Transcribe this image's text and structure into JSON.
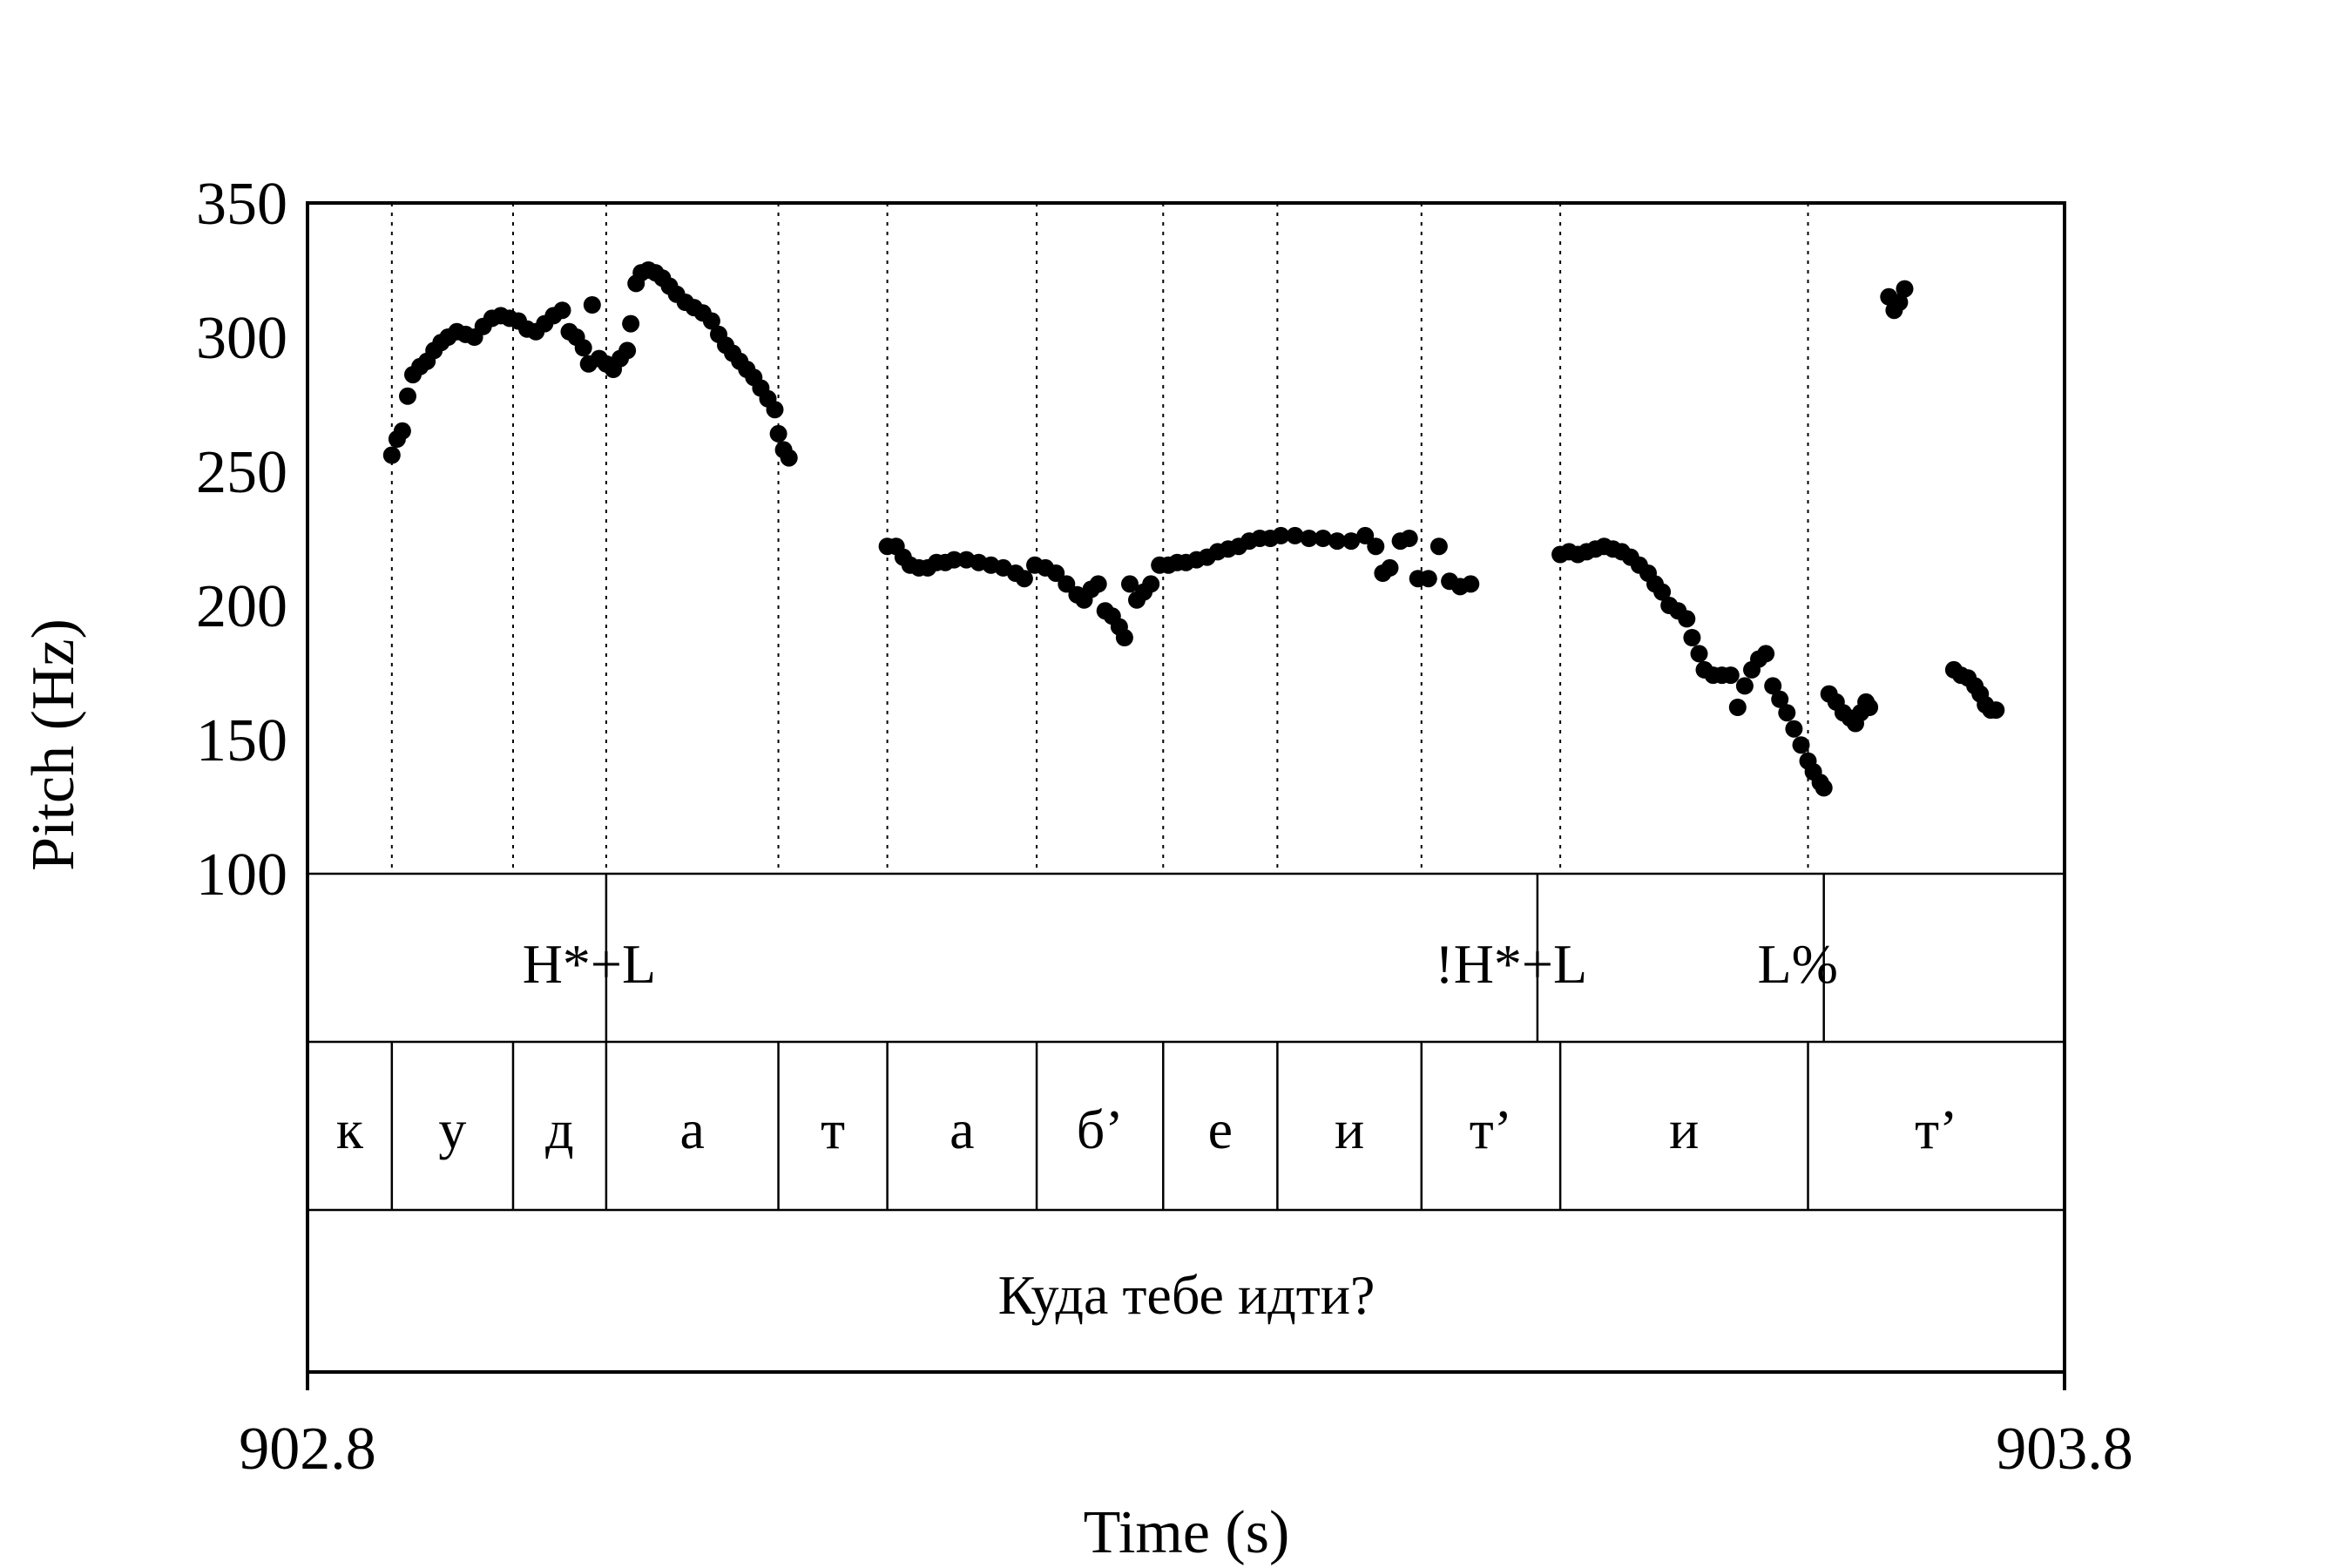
{
  "chart_data": {
    "type": "scatter",
    "xlabel": "Time (s)",
    "ylabel": "Pitch (Hz)",
    "xlim": [
      902.8,
      903.8
    ],
    "ylim": [
      100,
      350
    ],
    "x_tick_labels": [
      "902.8",
      "903.8"
    ],
    "y_ticks": [
      100,
      150,
      200,
      250,
      300,
      350
    ],
    "y_tick_labels": [
      "100",
      "150",
      "200",
      "250",
      "300",
      "350"
    ],
    "grid": false,
    "marker_color": "#000000",
    "tones": [
      {
        "label": "H*+L",
        "time": 902.97
      },
      {
        "label": "!H*+L",
        "time": 903.5
      },
      {
        "label": "L%",
        "time": 903.663
      }
    ],
    "segments": [
      {
        "label": "к",
        "start": 902.8,
        "end": 902.848
      },
      {
        "label": "у",
        "start": 902.848,
        "end": 902.917
      },
      {
        "label": "д",
        "start": 902.917,
        "end": 902.97
      },
      {
        "label": "а",
        "start": 902.97,
        "end": 903.068
      },
      {
        "label": "т",
        "start": 903.068,
        "end": 903.13
      },
      {
        "label": "а",
        "start": 903.13,
        "end": 903.215
      },
      {
        "label": "б’",
        "start": 903.215,
        "end": 903.287
      },
      {
        "label": "е",
        "start": 903.287,
        "end": 903.352
      },
      {
        "label": "и",
        "start": 903.352,
        "end": 903.434
      },
      {
        "label": "т’",
        "start": 903.434,
        "end": 903.513
      },
      {
        "label": "и",
        "start": 903.513,
        "end": 903.654
      },
      {
        "label": "т’",
        "start": 903.654,
        "end": 903.8
      }
    ],
    "sentence": "Куда тебе идти?",
    "series": [
      {
        "points": [
          [
            902.848,
            256
          ],
          [
            902.851,
            262
          ],
          [
            902.854,
            265
          ],
          [
            902.857,
            278
          ],
          [
            902.86,
            286
          ],
          [
            902.864,
            289
          ],
          [
            902.868,
            291
          ],
          [
            902.872,
            295
          ],
          [
            902.876,
            298
          ],
          [
            902.88,
            300
          ],
          [
            902.885,
            302
          ],
          [
            902.89,
            301
          ],
          [
            902.895,
            300
          ],
          [
            902.9,
            304
          ],
          [
            902.905,
            307
          ],
          [
            902.91,
            308
          ],
          [
            902.915,
            307
          ],
          [
            902.92,
            306
          ],
          [
            902.925,
            303
          ],
          [
            902.93,
            302
          ],
          [
            902.935,
            305
          ],
          [
            902.94,
            308
          ],
          [
            902.945,
            310
          ],
          [
            902.949,
            302
          ],
          [
            902.953,
            300
          ],
          [
            902.957,
            296
          ],
          [
            902.96,
            290
          ],
          [
            902.962,
            312
          ],
          [
            902.966,
            292
          ],
          [
            902.97,
            290
          ],
          [
            902.974,
            288
          ],
          [
            902.978,
            292
          ],
          [
            902.982,
            295
          ],
          [
            902.984,
            305
          ],
          [
            902.987,
            320
          ],
          [
            902.99,
            324
          ],
          [
            902.994,
            325
          ],
          [
            902.998,
            324
          ],
          [
            903.002,
            322
          ],
          [
            903.006,
            319
          ],
          [
            903.01,
            316
          ],
          [
            903.015,
            313
          ],
          [
            903.02,
            311
          ],
          [
            903.025,
            309
          ],
          [
            903.03,
            306
          ],
          [
            903.034,
            301
          ],
          [
            903.038,
            297
          ],
          [
            903.042,
            294
          ],
          [
            903.046,
            291
          ],
          [
            903.05,
            288
          ],
          [
            903.054,
            285
          ],
          [
            903.058,
            281
          ],
          [
            903.062,
            277
          ],
          [
            903.066,
            273
          ],
          [
            903.068,
            264
          ],
          [
            903.071,
            258
          ],
          [
            903.074,
            255
          ],
          [
            903.13,
            222
          ],
          [
            903.135,
            222
          ],
          [
            903.139,
            218
          ],
          [
            903.143,
            215
          ],
          [
            903.148,
            214
          ],
          [
            903.153,
            214
          ],
          [
            903.158,
            216
          ],
          [
            903.163,
            216
          ],
          [
            903.168,
            217
          ],
          [
            903.175,
            217
          ],
          [
            903.182,
            216
          ],
          [
            903.189,
            215
          ],
          [
            903.196,
            214
          ],
          [
            903.203,
            212
          ],
          [
            903.208,
            210
          ],
          [
            903.214,
            215
          ],
          [
            903.22,
            214
          ],
          [
            903.226,
            212
          ],
          [
            903.232,
            208
          ],
          [
            903.238,
            204
          ],
          [
            903.242,
            202
          ],
          [
            903.246,
            206
          ],
          [
            903.25,
            208
          ],
          [
            903.254,
            198
          ],
          [
            903.258,
            196
          ],
          [
            903.262,
            192
          ],
          [
            903.265,
            188
          ],
          [
            903.268,
            208
          ],
          [
            903.272,
            202
          ],
          [
            903.276,
            205
          ],
          [
            903.28,
            208
          ],
          [
            903.285,
            215
          ],
          [
            903.29,
            215
          ],
          [
            903.295,
            216
          ],
          [
            903.3,
            216
          ],
          [
            903.306,
            217
          ],
          [
            903.312,
            218
          ],
          [
            903.318,
            220
          ],
          [
            903.324,
            221
          ],
          [
            903.33,
            222
          ],
          [
            903.336,
            224
          ],
          [
            903.342,
            225
          ],
          [
            903.348,
            225
          ],
          [
            903.354,
            226
          ],
          [
            903.362,
            226
          ],
          [
            903.37,
            225
          ],
          [
            903.378,
            225
          ],
          [
            903.386,
            224
          ],
          [
            903.394,
            224
          ],
          [
            903.402,
            226
          ],
          [
            903.408,
            222
          ],
          [
            903.412,
            212
          ],
          [
            903.416,
            214
          ],
          [
            903.422,
            224
          ],
          [
            903.427,
            225
          ],
          [
            903.432,
            210
          ],
          [
            903.438,
            210
          ],
          [
            903.444,
            222
          ],
          [
            903.45,
            209
          ],
          [
            903.456,
            207
          ],
          [
            903.462,
            208
          ],
          [
            903.513,
            219
          ],
          [
            903.518,
            220
          ],
          [
            903.523,
            219
          ],
          [
            903.528,
            220
          ],
          [
            903.533,
            221
          ],
          [
            903.538,
            222
          ],
          [
            903.543,
            221
          ],
          [
            903.548,
            220
          ],
          [
            903.553,
            218
          ],
          [
            903.558,
            215
          ],
          [
            903.563,
            212
          ],
          [
            903.567,
            208
          ],
          [
            903.571,
            205
          ],
          [
            903.575,
            200
          ],
          [
            903.58,
            198
          ],
          [
            903.585,
            195
          ],
          [
            903.588,
            188
          ],
          [
            903.592,
            182
          ],
          [
            903.595,
            176
          ],
          [
            903.6,
            174
          ],
          [
            903.605,
            174
          ],
          [
            903.61,
            174
          ],
          [
            903.614,
            162
          ],
          [
            903.618,
            170
          ],
          [
            903.622,
            176
          ],
          [
            903.626,
            180
          ],
          [
            903.63,
            182
          ],
          [
            903.634,
            170
          ],
          [
            903.638,
            165
          ],
          [
            903.642,
            160
          ],
          [
            903.646,
            154
          ],
          [
            903.65,
            148
          ],
          [
            903.654,
            142
          ],
          [
            903.657,
            138
          ],
          [
            903.661,
            134
          ],
          [
            903.663,
            132
          ],
          [
            903.666,
            167
          ],
          [
            903.67,
            164
          ],
          [
            903.674,
            160
          ],
          [
            903.678,
            158
          ],
          [
            903.681,
            156
          ],
          [
            903.684,
            160
          ],
          [
            903.687,
            164
          ],
          [
            903.689,
            162
          ],
          [
            903.7,
            315
          ],
          [
            903.703,
            310
          ],
          [
            903.706,
            313
          ],
          [
            903.709,
            318
          ],
          [
            903.737,
            176
          ],
          [
            903.741,
            174
          ],
          [
            903.745,
            173
          ],
          [
            903.749,
            170
          ],
          [
            903.752,
            167
          ],
          [
            903.755,
            163
          ],
          [
            903.758,
            161
          ],
          [
            903.761,
            161
          ]
        ]
      }
    ]
  }
}
